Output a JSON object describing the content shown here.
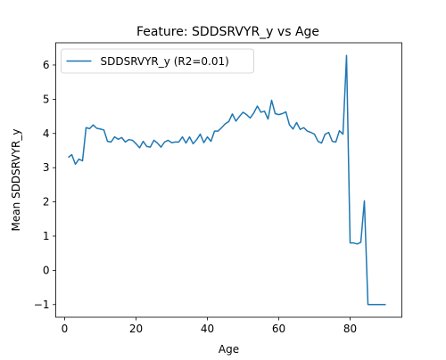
{
  "chart_data": {
    "type": "line",
    "title": "Feature: SDDSRVYR_y vs Age",
    "xlabel": "Age",
    "ylabel": "Mean SDDSRVYR_y",
    "xlim": [
      -2.5,
      94.5
    ],
    "ylim": [
      -1.37,
      6.65
    ],
    "x_ticks": [
      0,
      20,
      40,
      60,
      80
    ],
    "y_ticks": [
      -1,
      0,
      1,
      2,
      3,
      4,
      5,
      6
    ],
    "grid": false,
    "legend_position": "top-left",
    "series": [
      {
        "name": "SDDSRVYR_y (R2=0.01)",
        "color": "#1f77b4",
        "x": [
          1,
          2,
          3,
          4,
          5,
          6,
          7,
          8,
          9,
          10,
          11,
          12,
          13,
          14,
          15,
          16,
          17,
          18,
          19,
          20,
          21,
          22,
          23,
          24,
          25,
          26,
          27,
          28,
          29,
          30,
          31,
          32,
          33,
          34,
          35,
          36,
          37,
          38,
          39,
          40,
          41,
          42,
          43,
          44,
          45,
          46,
          47,
          48,
          49,
          50,
          51,
          52,
          53,
          54,
          55,
          56,
          57,
          58,
          59,
          60,
          61,
          62,
          63,
          64,
          65,
          66,
          67,
          68,
          69,
          70,
          71,
          72,
          73,
          74,
          75,
          76,
          77,
          78,
          79,
          80,
          81,
          82,
          83,
          84,
          85,
          86,
          87,
          88,
          89,
          90
        ],
        "y": [
          3.3,
          3.38,
          3.1,
          3.25,
          3.2,
          4.17,
          4.14,
          4.25,
          4.15,
          4.13,
          4.1,
          3.77,
          3.75,
          3.9,
          3.83,
          3.88,
          3.75,
          3.82,
          3.8,
          3.7,
          3.58,
          3.77,
          3.62,
          3.6,
          3.8,
          3.72,
          3.6,
          3.75,
          3.8,
          3.73,
          3.75,
          3.75,
          3.9,
          3.72,
          3.9,
          3.7,
          3.82,
          3.98,
          3.73,
          3.9,
          3.77,
          4.07,
          4.07,
          4.17,
          4.28,
          4.35,
          4.57,
          4.36,
          4.5,
          4.62,
          4.55,
          4.45,
          4.6,
          4.8,
          4.62,
          4.65,
          4.42,
          4.97,
          4.58,
          4.55,
          4.58,
          4.63,
          4.25,
          4.13,
          4.32,
          4.12,
          4.17,
          4.07,
          4.03,
          3.98,
          3.77,
          3.72,
          3.98,
          4.03,
          3.77,
          3.75,
          4.08,
          3.98,
          6.28,
          0.8,
          0.8,
          0.77,
          0.82,
          2.03,
          -1.0,
          -1.0,
          -1.0,
          -1.0,
          -1.0,
          -1.0
        ]
      }
    ]
  }
}
